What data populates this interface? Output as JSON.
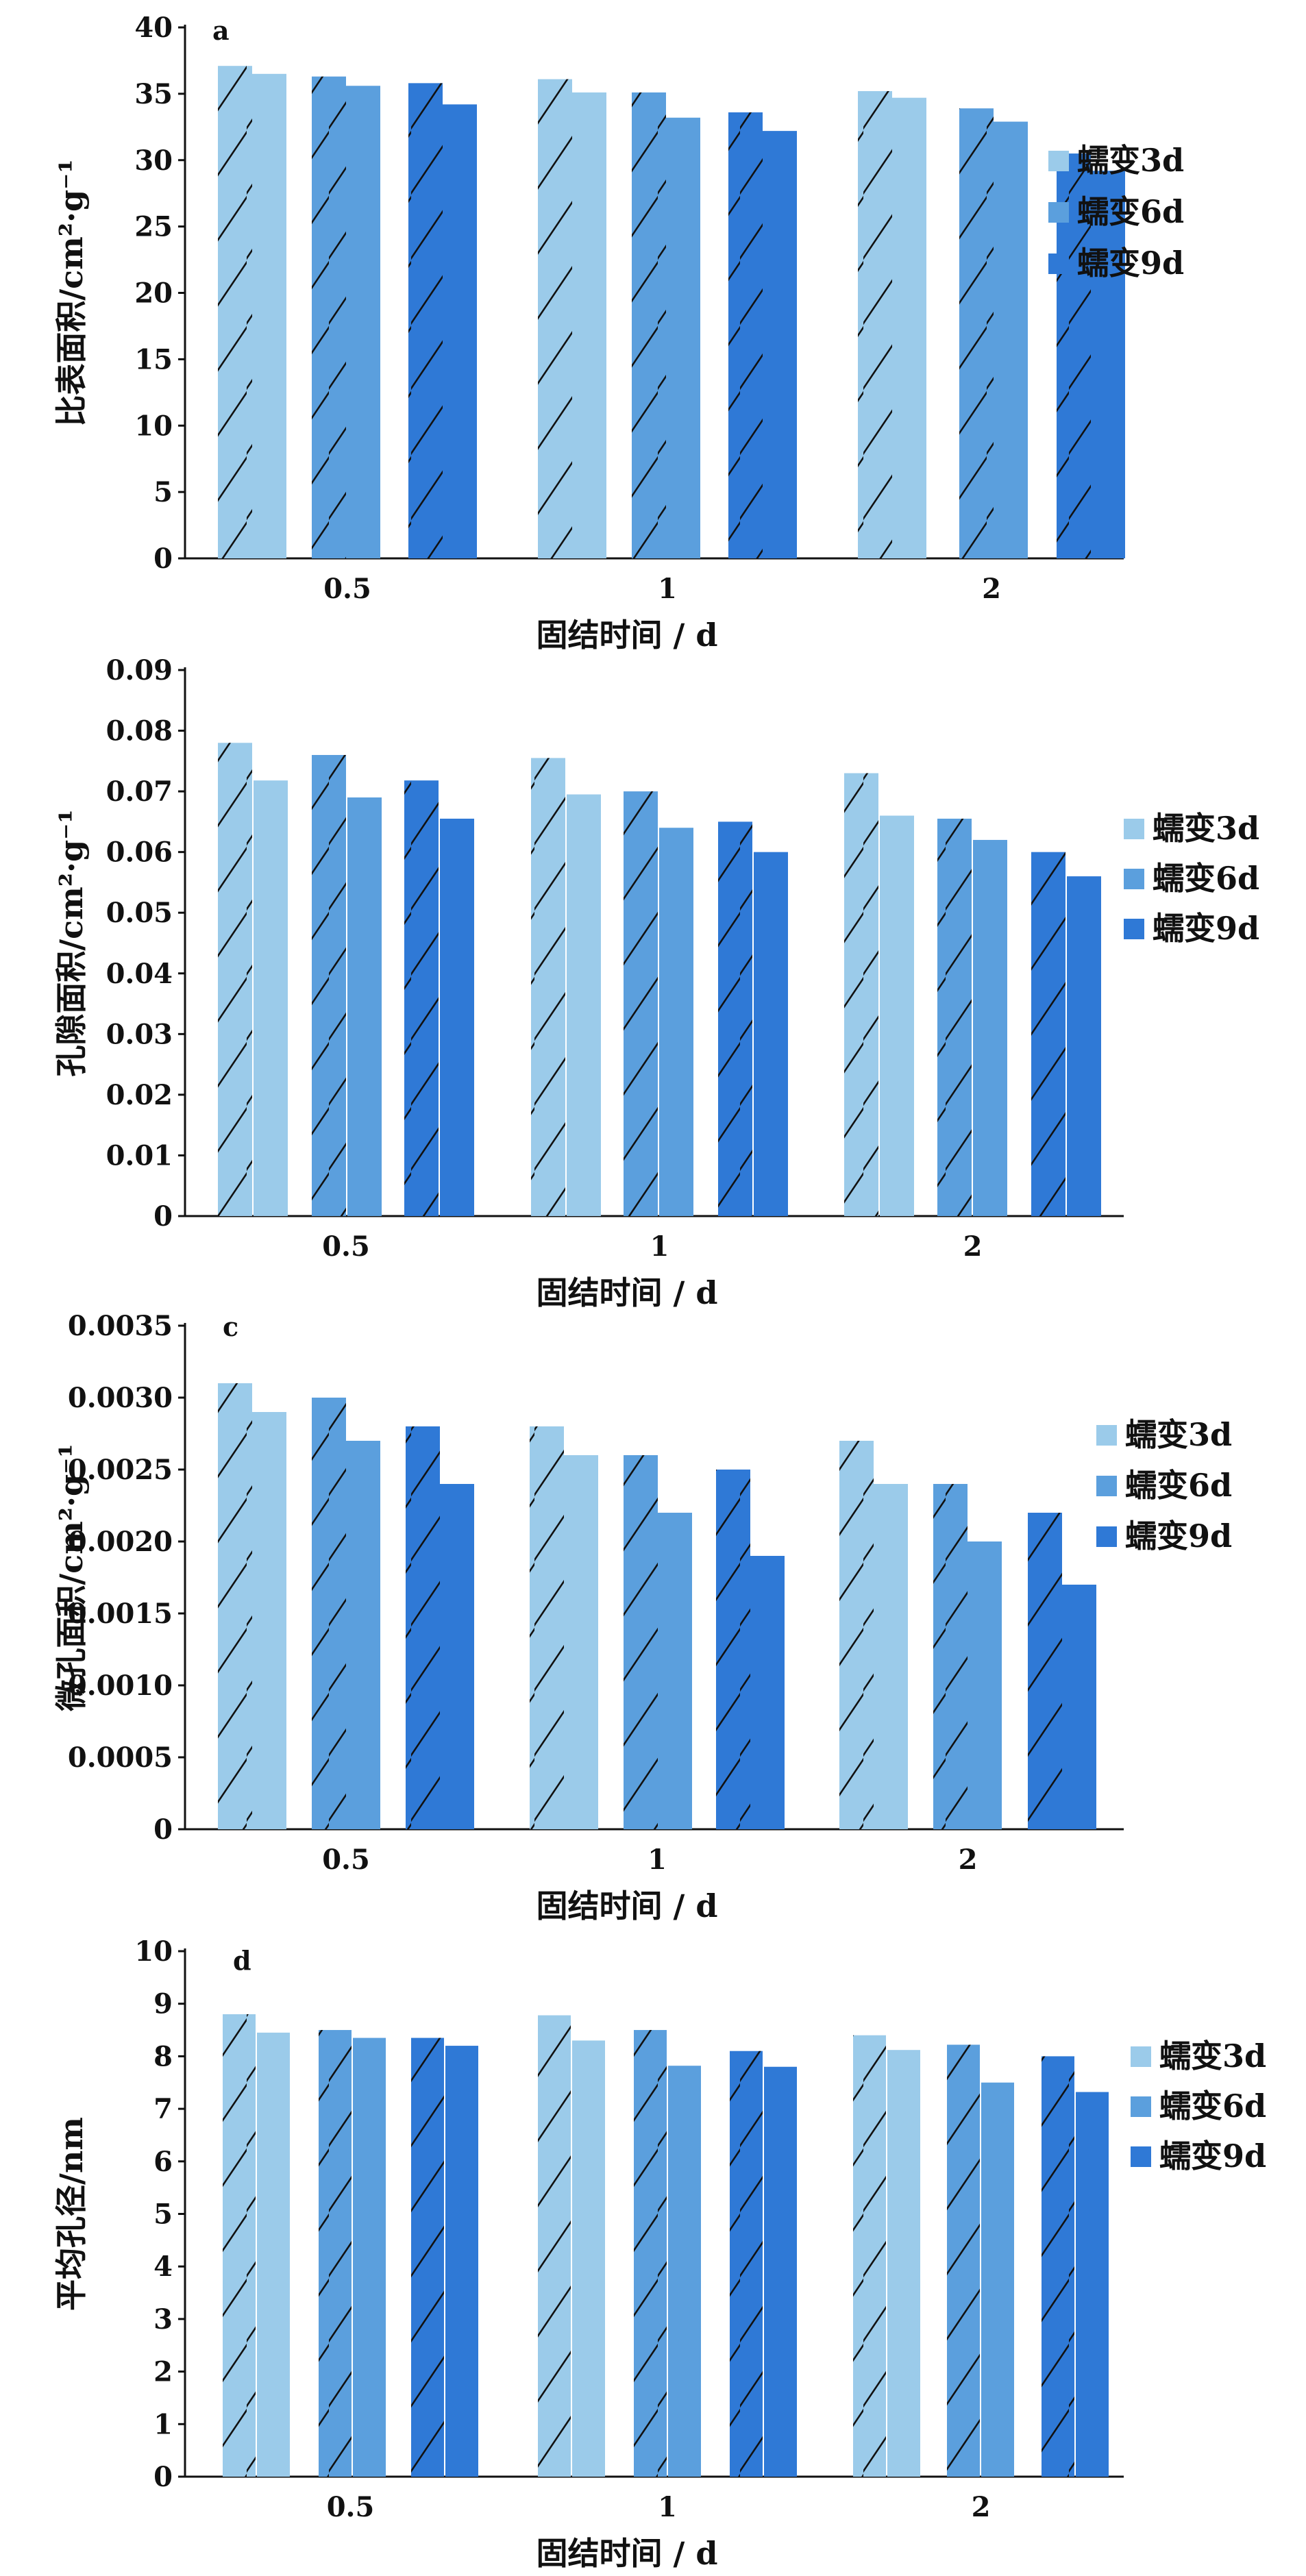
{
  "colors": {
    "series": [
      "#9bcbea",
      "#5b9fdd",
      "#2f79d6"
    ],
    "hatch": "#111111"
  },
  "legend": [
    "蠕变3d",
    "蠕变6d",
    "蠕变9d"
  ],
  "chart_data": [
    {
      "type": "bar",
      "panel_label": "a",
      "categories": [
        "0.5",
        "1",
        "2"
      ],
      "xlabel": "固结时间 / d",
      "ylabel": "比表面积/cm²·g⁻¹",
      "ylim": [
        0,
        40
      ],
      "yticks": [
        "0",
        "5",
        "10",
        "15",
        "20",
        "25",
        "30",
        "35",
        "40"
      ],
      "legend_position": "right",
      "series": [
        {
          "name": "蠕变3d",
          "values": [
            [
              37.1,
              36.5
            ],
            [
              36.1,
              35.1
            ],
            [
              35.2,
              34.7
            ]
          ]
        },
        {
          "name": "蠕变6d",
          "values": [
            [
              36.3,
              35.6
            ],
            [
              35.1,
              33.2
            ],
            [
              33.9,
              32.9
            ]
          ]
        },
        {
          "name": "蠕变9d",
          "values": [
            [
              35.8,
              34.2
            ],
            [
              33.6,
              32.2
            ],
            [
              30.5,
              29.2
            ]
          ]
        }
      ]
    },
    {
      "type": "bar",
      "panel_label": "",
      "categories": [
        "0.5",
        "1",
        "2"
      ],
      "xlabel": "固结时间 / d",
      "ylabel": "孔隙面积/cm²·g⁻¹",
      "ylim": [
        0,
        0.09
      ],
      "yticks": [
        "0",
        "0.01",
        "0.02",
        "0.03",
        "0.04",
        "0.05",
        "0.06",
        "0.07",
        "0.08",
        "0.09"
      ],
      "legend_position": "right",
      "series": [
        {
          "name": "蠕变3d",
          "values": [
            [
              0.078,
              0.0718
            ],
            [
              0.0755,
              0.0695
            ],
            [
              0.073,
              0.066
            ]
          ]
        },
        {
          "name": "蠕变6d",
          "values": [
            [
              0.076,
              0.069
            ],
            [
              0.07,
              0.064
            ],
            [
              0.0655,
              0.062
            ]
          ]
        },
        {
          "name": "蠕变9d",
          "values": [
            [
              0.0718,
              0.0655
            ],
            [
              0.065,
              0.06
            ],
            [
              0.06,
              0.056
            ]
          ]
        }
      ]
    },
    {
      "type": "bar",
      "panel_label": "c",
      "categories": [
        "0.5",
        "1",
        "2"
      ],
      "xlabel": "固结时间 / d",
      "ylabel": "微孔面积/cm²·g⁻¹",
      "ylim": [
        0,
        0.0035
      ],
      "yticks": [
        "0",
        "0.0005",
        "0.0010",
        "0.0015",
        "0.0020",
        "0.0025",
        "0.0030",
        "0.0035"
      ],
      "legend_position": "right",
      "series": [
        {
          "name": "蠕变3d",
          "values": [
            [
              0.0031,
              0.0029
            ],
            [
              0.0028,
              0.0026
            ],
            [
              0.0027,
              0.0024
            ]
          ]
        },
        {
          "name": "蠕变6d",
          "values": [
            [
              0.003,
              0.0027
            ],
            [
              0.0026,
              0.0022
            ],
            [
              0.0024,
              0.002
            ]
          ]
        },
        {
          "name": "蠕变9d",
          "values": [
            [
              0.0028,
              0.0024
            ],
            [
              0.0025,
              0.0019
            ],
            [
              0.0022,
              0.0017
            ]
          ]
        }
      ]
    },
    {
      "type": "bar",
      "panel_label": "d",
      "categories": [
        "0.5",
        "1",
        "2"
      ],
      "xlabel": "固结时间 / d",
      "ylabel": "平均孔径/nm",
      "ylim": [
        0,
        10
      ],
      "yticks": [
        "0",
        "1",
        "2",
        "3",
        "4",
        "5",
        "6",
        "7",
        "8",
        "9",
        "10"
      ],
      "legend_position": "right",
      "series": [
        {
          "name": "蠕变3d",
          "values": [
            [
              8.8,
              8.45
            ],
            [
              8.78,
              8.3
            ],
            [
              8.4,
              8.12
            ]
          ]
        },
        {
          "name": "蠕变6d",
          "values": [
            [
              8.5,
              8.35
            ],
            [
              8.5,
              7.82
            ],
            [
              8.22,
              7.5
            ]
          ]
        },
        {
          "name": "蠕变9d",
          "values": [
            [
              8.35,
              8.2
            ],
            [
              8.1,
              7.8
            ],
            [
              8.0,
              7.32
            ]
          ]
        }
      ]
    }
  ]
}
